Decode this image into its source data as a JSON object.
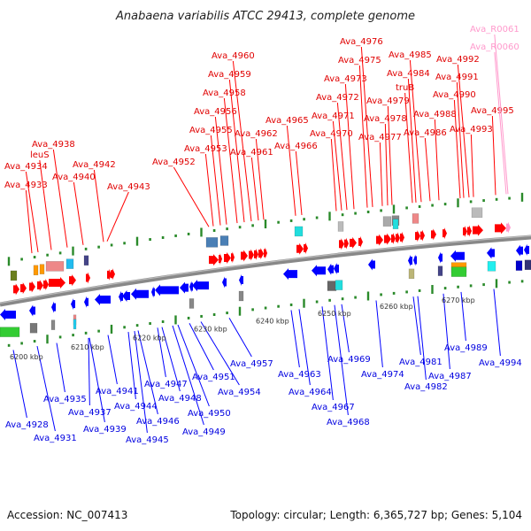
{
  "title": "Anabaena variabilis ATCC 29413, complete genome",
  "footer": {
    "accession": "Accession: NC_007413",
    "summary": "Topology: circular; Length: 6,365,727 bp; Genes: 5,104"
  },
  "colors": {
    "forward": "#ff0000",
    "reverse": "#0000ff",
    "rna": "#ff99cc",
    "axis": "#888888",
    "tick": "#228822"
  },
  "kbp_labels": [
    "6200 kbp",
    "6210 kbp",
    "6220 kbp",
    "6230 kbp",
    "6240 kbp",
    "6250 kbp",
    "6260 kbp",
    "6270 kbp"
  ],
  "top_labels": [
    "Ava_4933",
    "Ava_4934",
    "leuS",
    "Ava_4938",
    "Ava_4940",
    "Ava_4942",
    "Ava_4943",
    "Ava_4952",
    "Ava_4953",
    "Ava_4955",
    "Ava_4956",
    "Ava_4958",
    "Ava_4959",
    "Ava_4960",
    "Ava_4961",
    "Ava_4962",
    "Ava_4965",
    "Ava_4966",
    "Ava_4970",
    "Ava_4971",
    "Ava_4972",
    "Ava_4973",
    "Ava_4975",
    "Ava_4976",
    "Ava_4977",
    "Ava_4978",
    "Ava_4979",
    "truB",
    "Ava_4984",
    "Ava_4985",
    "Ava_4986",
    "Ava_4988",
    "Ava_4990",
    "Ava_4991",
    "Ava_4992",
    "Ava_4993",
    "Ava_4995"
  ],
  "rna_labels": [
    "Ava_R0061",
    "Ava_R0060"
  ],
  "bottom_labels": [
    "Ava_4928",
    "Ava_4931",
    "Ava_4935",
    "Ava_4937",
    "Ava_4939",
    "Ava_4941",
    "Ava_4944",
    "Ava_4945",
    "Ava_4946",
    "Ava_4947",
    "Ava_4948",
    "Ava_4949",
    "Ava_4950",
    "Ava_4951",
    "Ava_4954",
    "Ava_4957",
    "Ava_4963",
    "Ava_4964",
    "Ava_4967",
    "Ava_4968",
    "Ava_4969",
    "Ava_4974",
    "Ava_4981",
    "Ava_4982",
    "Ava_4987",
    "Ava_4989",
    "Ava_4994"
  ]
}
